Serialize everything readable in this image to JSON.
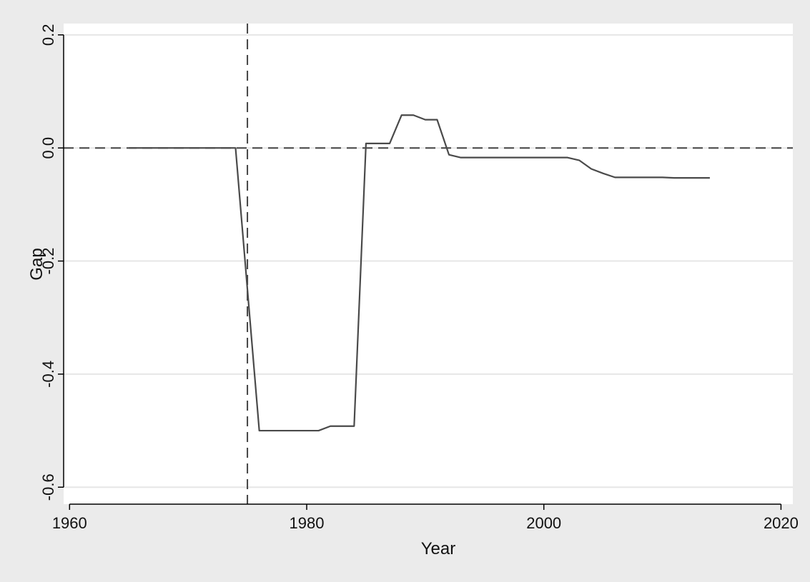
{
  "chart_data": {
    "type": "line",
    "title": "",
    "xlabel": "Year",
    "ylabel": "Gap",
    "xlim": [
      1959.5,
      2021
    ],
    "ylim": [
      -0.63,
      0.22
    ],
    "x_ticks": [
      1960,
      1980,
      2000,
      2020
    ],
    "x_tick_labels": [
      "1960",
      "1980",
      "2000",
      "2020"
    ],
    "y_ticks": [
      0.2,
      0.0,
      -0.2,
      -0.4,
      -0.6
    ],
    "y_tick_labels": [
      "0.2",
      "0.0",
      "-0.2",
      "-0.4",
      "-0.6"
    ],
    "grid": true,
    "reference_lines": [
      {
        "axis": "y",
        "value": 0.0,
        "style": "dashed"
      },
      {
        "axis": "x",
        "value": 1975,
        "style": "dashed"
      }
    ],
    "series": [
      {
        "color": "#4a4a4a",
        "x": [
          1965,
          1966,
          1967,
          1968,
          1969,
          1970,
          1971,
          1972,
          1973,
          1974,
          1975,
          1976,
          1977,
          1978,
          1979,
          1980,
          1981,
          1982,
          1983,
          1984,
          1985,
          1986,
          1987,
          1988,
          1989,
          1990,
          1991,
          1992,
          1993,
          1994,
          1995,
          1996,
          1997,
          1998,
          1999,
          2000,
          2001,
          2002,
          2003,
          2004,
          2005,
          2006,
          2007,
          2008,
          2009,
          2010,
          2011,
          2012,
          2013,
          2014
        ],
        "values": [
          0.0,
          0.0,
          0.0,
          0.0,
          0.0,
          0.0,
          0.0,
          0.0,
          0.0,
          0.0,
          -0.25,
          -0.5,
          -0.5,
          -0.5,
          -0.5,
          -0.5,
          -0.5,
          -0.492,
          -0.492,
          -0.492,
          0.008,
          0.008,
          0.008,
          0.058,
          0.058,
          0.05,
          0.05,
          -0.012,
          -0.017,
          -0.017,
          -0.017,
          -0.017,
          -0.017,
          -0.017,
          -0.017,
          -0.017,
          -0.017,
          -0.017,
          -0.022,
          -0.037,
          -0.045,
          -0.052,
          -0.052,
          -0.052,
          -0.052,
          -0.052,
          -0.053,
          -0.053,
          -0.053,
          -0.053
        ]
      }
    ]
  }
}
